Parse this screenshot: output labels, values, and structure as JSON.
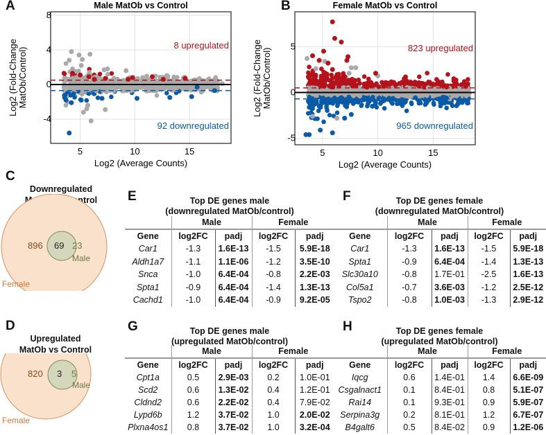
{
  "panels": {
    "A": "A",
    "B": "B",
    "C": "C",
    "D": "D",
    "E": "E",
    "F": "F",
    "G": "G",
    "H": "H"
  },
  "colors": {
    "up": "#b5121b",
    "down": "#0b5aa5",
    "ns": "#a9a9a9",
    "female": "#f7dcc3",
    "female_stroke": "#d08a4a",
    "male": "#d3dcc0",
    "male_stroke": "#7d8a5a",
    "female_text": "#c8742f",
    "male_text": "#6b7a45"
  },
  "chart_data": [
    {
      "type": "scatter",
      "title": "Male MatOb vs Control",
      "xlabel": "Log2 (Average Counts)",
      "ylabel_lines": [
        "Log2 (Fold-Change",
        "MatOb/Control)"
      ],
      "xlim": [
        2.3,
        18.8
      ],
      "ylim": [
        -6.8,
        8.4
      ],
      "xticks": [
        5,
        10,
        15
      ],
      "yticks": [
        8,
        4,
        0,
        -4
      ],
      "grid": true,
      "thresholds": {
        "up": 0.5,
        "down": -0.7
      },
      "annotations": {
        "up": "8 upregulated",
        "down": "92 downregulated"
      },
      "points": {
        "ns": [
          [
            4.2,
            3.8
          ],
          [
            4.0,
            2.8
          ],
          [
            4.9,
            3.4
          ],
          [
            5.2,
            2.9
          ],
          [
            5.9,
            3.5
          ],
          [
            5.1,
            2.2
          ],
          [
            4.3,
            1.8
          ],
          [
            5.3,
            -3.2
          ],
          [
            5.6,
            -2.8
          ],
          [
            6.0,
            -4.2
          ],
          [
            7.3,
            -2.9
          ],
          [
            7.5,
            1.8
          ],
          [
            7.2,
            1.7
          ],
          [
            9.2,
            1.6
          ],
          [
            5.7,
            -2.4
          ],
          [
            17.3,
            -0.5
          ],
          [
            18,
            0.1
          ]
        ],
        "up": [
          [
            4.3,
            1.3
          ],
          [
            5.0,
            1.1
          ],
          [
            5.8,
            0.9
          ],
          [
            6.3,
            0.6
          ],
          [
            7.3,
            0.7
          ],
          [
            9.4,
            0.6
          ],
          [
            9.8,
            0.8
          ],
          [
            11.6,
            0.9
          ],
          [
            12.6,
            0.6
          ],
          [
            14.6,
            0.7
          ]
        ],
        "down": [
          [
            4.0,
            -5.6
          ],
          [
            3.7,
            -1.8
          ],
          [
            4.2,
            -2.1
          ],
          [
            5.1,
            -1.8
          ],
          [
            7.0,
            -1.6
          ],
          [
            10.2,
            -1.6
          ],
          [
            13.2,
            -1.5
          ],
          [
            15.2,
            -1.4
          ],
          [
            17.3,
            -0.7
          ],
          [
            15.7,
            -0.3
          ]
        ]
      }
    },
    {
      "type": "scatter",
      "title": "Female MatOb vs Control",
      "xlabel": "Log2 (Average Counts)",
      "ylabel_lines": [
        "Log2 (Fold-Change",
        "MatOb/Control)"
      ],
      "xlim": [
        2.5,
        18.8
      ],
      "ylim": [
        -5.7,
        8.8
      ],
      "xticks": [
        5,
        10,
        15
      ],
      "yticks": [
        5,
        0,
        -5
      ],
      "grid": true,
      "thresholds": {
        "up": 0.5,
        "down": -0.7
      },
      "annotations": {
        "up": "823 upregulated",
        "down": "965 downregulated"
      },
      "points": {
        "ns": [
          [
            3.6,
            3.7
          ],
          [
            5.2,
            3.4
          ],
          [
            4.4,
            2.6
          ],
          [
            7.6,
            2.7
          ],
          [
            8.0,
            2.7
          ],
          [
            7.4,
            2.1
          ],
          [
            10.0,
            1.8
          ],
          [
            17.3,
            -0.2
          ],
          [
            18.0,
            0.0
          ],
          [
            6.3,
            -2.8
          ],
          [
            4.1,
            -2.6
          ],
          [
            16.5,
            -0.7
          ]
        ],
        "up": [
          [
            5.9,
            7.7
          ],
          [
            6.1,
            5.9
          ],
          [
            6.7,
            5.5
          ],
          [
            5.1,
            4.5
          ],
          [
            4.1,
            4.0
          ],
          [
            4.7,
            3.5
          ],
          [
            7.3,
            3.9
          ],
          [
            7.2,
            3.5
          ],
          [
            5.5,
            3.2
          ],
          [
            5.9,
            2.5
          ],
          [
            5.4,
            2.0
          ],
          [
            9.8,
            2.1
          ],
          [
            12.5,
            1.7
          ],
          [
            16.2,
            0.6
          ]
        ],
        "down": [
          [
            3.5,
            -4.6
          ],
          [
            3.8,
            -4.6
          ],
          [
            4.8,
            -4.1
          ],
          [
            5.9,
            -4.4
          ],
          [
            7.0,
            -2.8
          ],
          [
            7.6,
            -2.4
          ],
          [
            9.5,
            -1.5
          ],
          [
            17.2,
            -1.3
          ],
          [
            16.2,
            -0.6
          ]
        ]
      }
    }
  ],
  "venn_down": {
    "title_lines": [
      "Downregulated",
      "MatOb vs Control"
    ],
    "female_only": "896",
    "overlap": "69",
    "male_only": "23",
    "male_label": "Male",
    "female_label": "Female"
  },
  "venn_up": {
    "title_lines": [
      "Upregulated",
      "MatOb vs Control"
    ],
    "female_only": "820",
    "overlap": "3",
    "male_only": "5",
    "male_label": "Male",
    "female_label": "Female"
  },
  "tables": {
    "E": {
      "title_lines": [
        "Top DE genes male",
        "(downregulated MatOb/control)"
      ],
      "groups": [
        "Male",
        "Female"
      ],
      "cols": [
        "Gene",
        "log2FC",
        "padj",
        "log2FC",
        "padj"
      ],
      "rows": [
        {
          "gene": "Car1",
          "m_fc": "-1.3",
          "m_p": "1.6E-13",
          "m_sig": true,
          "f_fc": "-1.5",
          "f_p": "5.9E-18",
          "f_sig": true
        },
        {
          "gene": "Aldh1a7",
          "m_fc": "-1.1",
          "m_p": "1.1E-06",
          "m_sig": true,
          "f_fc": "-1.2",
          "f_p": "3.5E-10",
          "f_sig": true
        },
        {
          "gene": "Snca",
          "m_fc": "-1.0",
          "m_p": "6.4E-04",
          "m_sig": true,
          "f_fc": "-0.8",
          "f_p": "2.2E-03",
          "f_sig": true
        },
        {
          "gene": "Spta1",
          "m_fc": "-0.9",
          "m_p": "6.4E-04",
          "m_sig": true,
          "f_fc": "-1.4",
          "f_p": "1.3E-13",
          "f_sig": true
        },
        {
          "gene": "Cachd1",
          "m_fc": "-1.0",
          "m_p": "6.4E-04",
          "m_sig": true,
          "f_fc": "-0.9",
          "f_p": "9.2E-05",
          "f_sig": true
        }
      ]
    },
    "F": {
      "title_lines": [
        "Top DE genes female",
        "(downregulated MatOb/control)"
      ],
      "groups": [
        "Male",
        "Female"
      ],
      "cols": [
        "Gene",
        "log2FC",
        "padj",
        "log2FC",
        "padj"
      ],
      "rows": [
        {
          "gene": "Car1",
          "m_fc": "-1.3",
          "m_p": "1.6E-13",
          "m_sig": true,
          "f_fc": "-1.5",
          "f_p": "5.9E-18",
          "f_sig": true
        },
        {
          "gene": "Spta1",
          "m_fc": "-0.9",
          "m_p": "6.4E-04",
          "m_sig": true,
          "f_fc": "-1.4",
          "f_p": "1.3E-13",
          "f_sig": true
        },
        {
          "gene": "Slc30a10",
          "m_fc": "-0.8",
          "m_p": "1.7E-01",
          "m_sig": false,
          "f_fc": "-2.5",
          "f_p": "1.6E-13",
          "f_sig": true
        },
        {
          "gene": "Col5a1",
          "m_fc": "-0.7",
          "m_p": "3.6E-03",
          "m_sig": true,
          "f_fc": "-1.2",
          "f_p": "2.5E-12",
          "f_sig": true
        },
        {
          "gene": "Tspo2",
          "m_fc": "-0.8",
          "m_p": "1.0E-03",
          "m_sig": true,
          "f_fc": "-1.3",
          "f_p": "2.9E-12",
          "f_sig": true
        }
      ]
    },
    "G": {
      "title_lines": [
        "Top DE genes male",
        "(upregulated MatOb/control)"
      ],
      "groups": [
        "Male",
        "Female"
      ],
      "cols": [
        "Gene",
        "log2FC",
        "padj",
        "log2FC",
        "padj"
      ],
      "rows": [
        {
          "gene": "Cpt1a",
          "m_fc": "0.5",
          "m_p": "2.9E-03",
          "m_sig": true,
          "f_fc": "0.2",
          "f_p": "1.0E-01",
          "f_sig": false
        },
        {
          "gene": "Scd2",
          "m_fc": "0.6",
          "m_p": "1.3E-02",
          "m_sig": true,
          "f_fc": "0.4",
          "f_p": "1.2E-01",
          "f_sig": false
        },
        {
          "gene": "Cldnd2",
          "m_fc": "0.6",
          "m_p": "2.2E-02",
          "m_sig": true,
          "f_fc": "0.4",
          "f_p": "7.9E-02",
          "f_sig": false
        },
        {
          "gene": "Lypd6b",
          "m_fc": "1.2",
          "m_p": "3.7E-02",
          "m_sig": true,
          "f_fc": "1.0",
          "f_p": "2.0E-02",
          "f_sig": true
        },
        {
          "gene": "Plxna4os1",
          "m_fc": "0.8",
          "m_p": "3.7E-02",
          "m_sig": true,
          "f_fc": "1.0",
          "f_p": "3.2E-04",
          "f_sig": true
        }
      ]
    },
    "H": {
      "title_lines": [
        "Top DE genes female",
        "(upregulated MatOb/control)"
      ],
      "groups": [
        "Male",
        "Female"
      ],
      "cols": [
        "Gene",
        "log2FC",
        "padj",
        "log2FC",
        "padj"
      ],
      "rows": [
        {
          "gene": "Iqcg",
          "m_fc": "0.6",
          "m_p": "1.4E-01",
          "m_sig": false,
          "f_fc": "1.4",
          "f_p": "6.6E-09",
          "f_sig": true
        },
        {
          "gene": "Csgalnact1",
          "m_fc": "0.1",
          "m_p": "8.4E-01",
          "m_sig": false,
          "f_fc": "0.8",
          "f_p": "5.1E-07",
          "f_sig": true
        },
        {
          "gene": "Rai14",
          "m_fc": "0.1",
          "m_p": "9.3E-01",
          "m_sig": false,
          "f_fc": "0.9",
          "f_p": "5.9E-07",
          "f_sig": true
        },
        {
          "gene": "Serpina3g",
          "m_fc": "0.2",
          "m_p": "8.1E-01",
          "m_sig": false,
          "f_fc": "1.2",
          "f_p": "6.7E-07",
          "f_sig": true
        },
        {
          "gene": "B4galt6",
          "m_fc": "0.5",
          "m_p": "8.4E-02",
          "m_sig": false,
          "f_fc": "0.9",
          "f_p": "1.2E-06",
          "f_sig": true
        }
      ]
    }
  }
}
